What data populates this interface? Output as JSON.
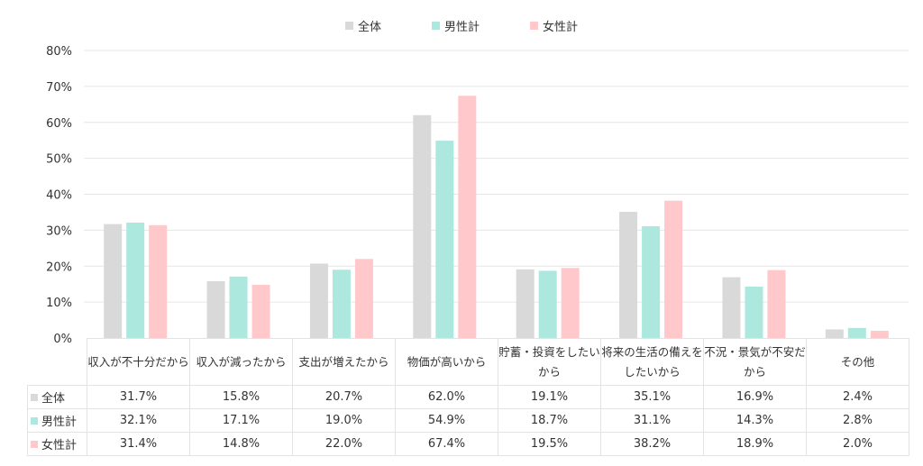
{
  "chart_data": {
    "type": "bar",
    "title": "",
    "xlabel": "",
    "ylabel": "",
    "ylim": [
      0,
      80
    ],
    "yticks": [
      "0%",
      "10%",
      "20%",
      "30%",
      "40%",
      "50%",
      "60%",
      "70%",
      "80%"
    ],
    "grid": true,
    "legend_position": "top",
    "categories": [
      "収入が不十分だから",
      "収入が減ったから",
      "支出が増えたから",
      "物価が高いから",
      "貯蓄・投資をしたいから",
      "将来の生活の備えをしたいから",
      "不況・景気が不安だから",
      "その他"
    ],
    "series": [
      {
        "name": "全体",
        "color": "#d9d9d9",
        "values": [
          31.7,
          15.8,
          20.7,
          62.0,
          19.1,
          35.1,
          16.9,
          2.4
        ],
        "labels": [
          "31.7%",
          "15.8%",
          "20.7%",
          "62.0%",
          "19.1%",
          "35.1%",
          "16.9%",
          "2.4%"
        ]
      },
      {
        "name": "男性計",
        "color": "#ade8df",
        "values": [
          32.1,
          17.1,
          19.0,
          54.9,
          18.7,
          31.1,
          14.3,
          2.8
        ],
        "labels": [
          "32.1%",
          "17.1%",
          "19.0%",
          "54.9%",
          "18.7%",
          "31.1%",
          "14.3%",
          "2.8%"
        ]
      },
      {
        "name": "女性計",
        "color": "#ffc9cc",
        "values": [
          31.4,
          14.8,
          22.0,
          67.4,
          19.5,
          38.2,
          18.9,
          2.0
        ],
        "labels": [
          "31.4%",
          "14.8%",
          "22.0%",
          "67.4%",
          "19.5%",
          "38.2%",
          "18.9%",
          "2.0%"
        ]
      }
    ]
  }
}
